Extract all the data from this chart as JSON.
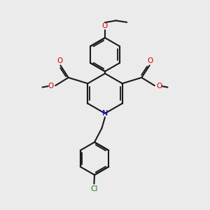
{
  "background_color": "#ebebeb",
  "bond_color": "#1a1a1a",
  "oxygen_color": "#cc0000",
  "nitrogen_color": "#0000cc",
  "chlorine_color": "#1a7a1a",
  "bond_width": 1.5,
  "figsize": [
    3.0,
    3.0
  ],
  "dpi": 100,
  "xlim": [
    0,
    10
  ],
  "ylim": [
    0,
    10
  ]
}
